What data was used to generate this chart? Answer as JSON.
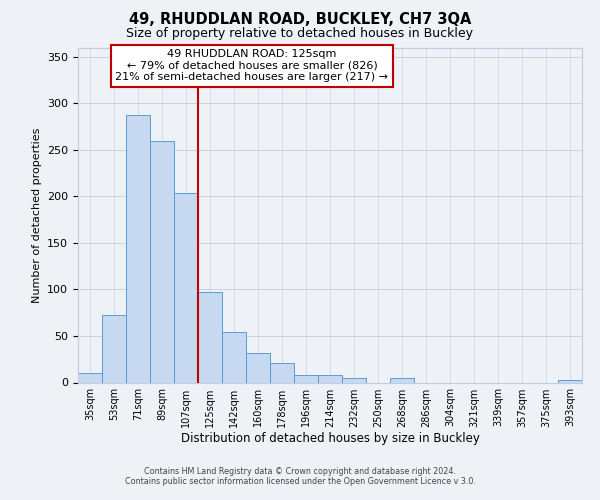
{
  "title": "49, RHUDDLAN ROAD, BUCKLEY, CH7 3QA",
  "subtitle": "Size of property relative to detached houses in Buckley",
  "xlabel": "Distribution of detached houses by size in Buckley",
  "ylabel": "Number of detached properties",
  "bar_labels": [
    "35sqm",
    "53sqm",
    "71sqm",
    "89sqm",
    "107sqm",
    "125sqm",
    "142sqm",
    "160sqm",
    "178sqm",
    "196sqm",
    "214sqm",
    "232sqm",
    "250sqm",
    "268sqm",
    "286sqm",
    "304sqm",
    "321sqm",
    "339sqm",
    "357sqm",
    "375sqm",
    "393sqm"
  ],
  "bar_values": [
    10,
    73,
    287,
    259,
    204,
    97,
    54,
    32,
    21,
    8,
    8,
    5,
    0,
    5,
    0,
    0,
    0,
    0,
    0,
    0,
    3
  ],
  "bar_color": "#c6d9f0",
  "bar_edgecolor": "#5b9bd5",
  "ylim": [
    0,
    360
  ],
  "yticks": [
    0,
    50,
    100,
    150,
    200,
    250,
    300,
    350
  ],
  "property_line_index": 5,
  "property_line_color": "#c00000",
  "annotation_title": "49 RHUDDLAN ROAD: 125sqm",
  "annotation_line1": "← 79% of detached houses are smaller (826)",
  "annotation_line2": "21% of semi-detached houses are larger (217) →",
  "annotation_box_color": "#c00000",
  "background_color": "#eef2f7",
  "grid_color": "#c0cce0",
  "footer1": "Contains HM Land Registry data © Crown copyright and database right 2024.",
  "footer2": "Contains public sector information licensed under the Open Government Licence v 3.0."
}
